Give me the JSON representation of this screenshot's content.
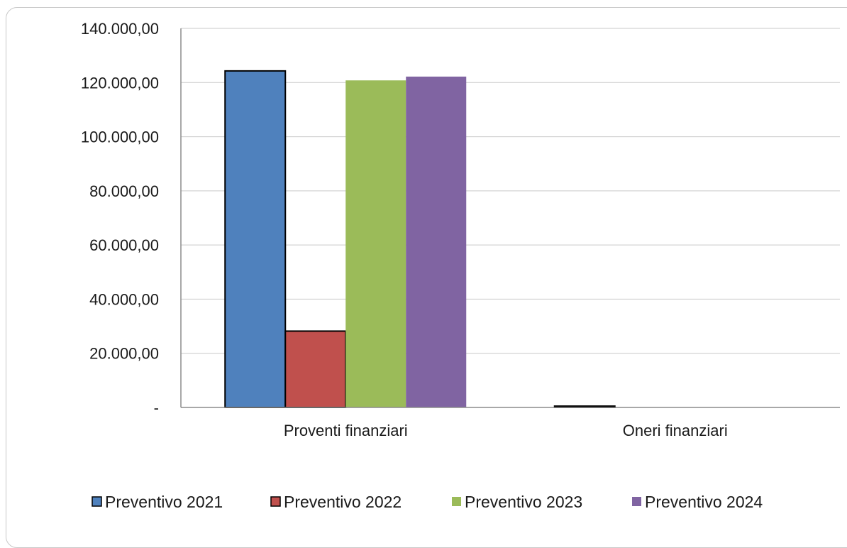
{
  "chart_data": {
    "type": "bar",
    "title": "",
    "xlabel": "",
    "ylabel": "",
    "categories": [
      "Proventi finanziari",
      "Oneri finanziari"
    ],
    "series": [
      {
        "name": "Preventivo 2021",
        "values": [
          124300,
          500
        ],
        "color": "#4f81bd"
      },
      {
        "name": "Preventivo 2022",
        "values": [
          28200,
          0
        ],
        "color": "#c0504d"
      },
      {
        "name": "Preventivo 2023",
        "values": [
          120800,
          0
        ],
        "color": "#9bbb59"
      },
      {
        "name": "Preventivo 2024",
        "values": [
          122200,
          0
        ],
        "color": "#8064a2"
      }
    ],
    "ylim": [
      0,
      140000
    ],
    "y_ticks": [
      0,
      20000,
      40000,
      60000,
      80000,
      100000,
      120000,
      140000
    ],
    "y_tick_labels": [
      "-",
      "20.000,00",
      "40.000,00",
      "60.000,00",
      "80.000,00",
      "100.000,00",
      "120.000,00",
      "140.000,00"
    ],
    "grid": true,
    "legend_position": "bottom"
  }
}
